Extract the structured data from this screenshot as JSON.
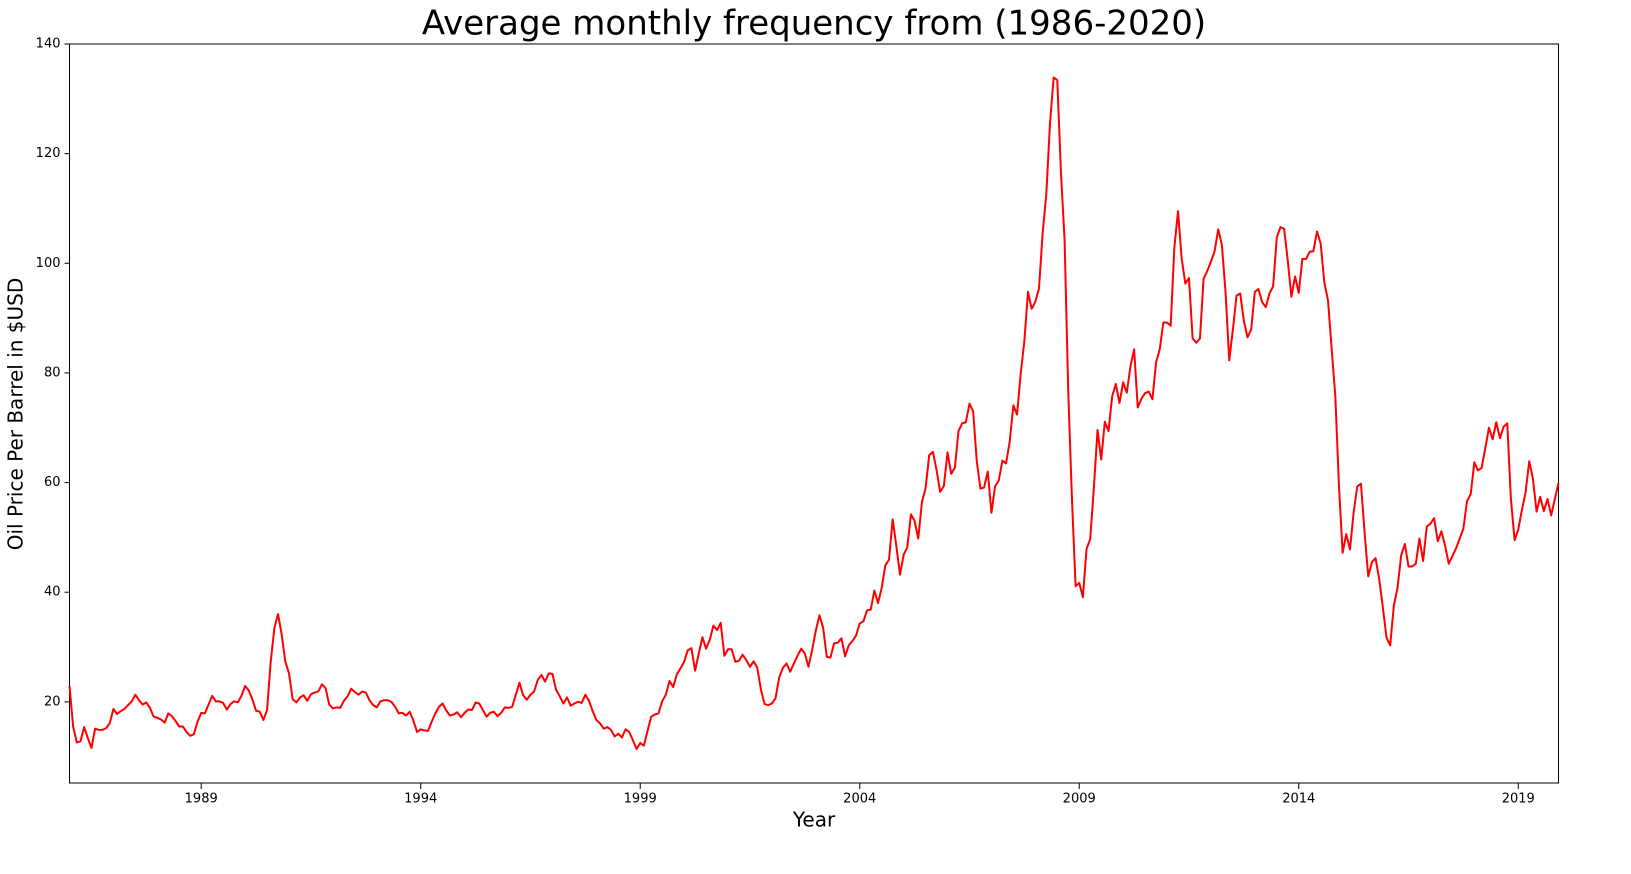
{
  "chart_data": {
    "type": "line",
    "title": "Average monthly frequency from (1986-2020)",
    "x_label": "Year",
    "y_label": "Oil Price Per Barrel in $USD",
    "color": "#ff0000",
    "xlim": [
      1986,
      2019.917
    ],
    "xticks": [
      1989,
      1994,
      1999,
      2004,
      2009,
      2014,
      2019
    ],
    "ylim": [
      5.2,
      140
    ],
    "yticks": [
      20,
      40,
      60,
      80,
      100,
      120,
      140
    ],
    "x": [
      1986,
      1986.083,
      1986.167,
      1986.25,
      1986.333,
      1986.417,
      1986.5,
      1986.583,
      1986.667,
      1986.75,
      1986.833,
      1986.917,
      1987,
      1987.083,
      1987.167,
      1987.25,
      1987.333,
      1987.417,
      1987.5,
      1987.583,
      1987.667,
      1987.75,
      1987.833,
      1987.917,
      1988,
      1988.083,
      1988.167,
      1988.25,
      1988.333,
      1988.417,
      1988.5,
      1988.583,
      1988.667,
      1988.75,
      1988.833,
      1988.917,
      1989,
      1989.083,
      1989.167,
      1989.25,
      1989.333,
      1989.417,
      1989.5,
      1989.583,
      1989.667,
      1989.75,
      1989.833,
      1989.917,
      1990,
      1990.083,
      1990.167,
      1990.25,
      1990.333,
      1990.417,
      1990.5,
      1990.583,
      1990.667,
      1990.75,
      1990.833,
      1990.917,
      1991,
      1991.083,
      1991.167,
      1991.25,
      1991.333,
      1991.417,
      1991.5,
      1991.583,
      1991.667,
      1991.75,
      1991.833,
      1991.917,
      1992,
      1992.083,
      1992.167,
      1992.25,
      1992.333,
      1992.417,
      1992.5,
      1992.583,
      1992.667,
      1992.75,
      1992.833,
      1992.917,
      1993,
      1993.083,
      1993.167,
      1993.25,
      1993.333,
      1993.417,
      1993.5,
      1993.583,
      1993.667,
      1993.75,
      1993.833,
      1993.917,
      1994,
      1994.083,
      1994.167,
      1994.25,
      1994.333,
      1994.417,
      1994.5,
      1994.583,
      1994.667,
      1994.75,
      1994.833,
      1994.917,
      1995,
      1995.083,
      1995.167,
      1995.25,
      1995.333,
      1995.417,
      1995.5,
      1995.583,
      1995.667,
      1995.75,
      1995.833,
      1995.917,
      1996,
      1996.083,
      1996.167,
      1996.25,
      1996.333,
      1996.417,
      1996.5,
      1996.583,
      1996.667,
      1996.75,
      1996.833,
      1996.917,
      1997,
      1997.083,
      1997.167,
      1997.25,
      1997.333,
      1997.417,
      1997.5,
      1997.583,
      1997.667,
      1997.75,
      1997.833,
      1997.917,
      1998,
      1998.083,
      1998.167,
      1998.25,
      1998.333,
      1998.417,
      1998.5,
      1998.583,
      1998.667,
      1998.75,
      1998.833,
      1998.917,
      1999,
      1999.083,
      1999.167,
      1999.25,
      1999.333,
      1999.417,
      1999.5,
      1999.583,
      1999.667,
      1999.75,
      1999.833,
      1999.917,
      2000,
      2000.083,
      2000.167,
      2000.25,
      2000.333,
      2000.417,
      2000.5,
      2000.583,
      2000.667,
      2000.75,
      2000.833,
      2000.917,
      2001,
      2001.083,
      2001.167,
      2001.25,
      2001.333,
      2001.417,
      2001.5,
      2001.583,
      2001.667,
      2001.75,
      2001.833,
      2001.917,
      2002,
      2002.083,
      2002.167,
      2002.25,
      2002.333,
      2002.417,
      2002.5,
      2002.583,
      2002.667,
      2002.75,
      2002.833,
      2002.917,
      2003,
      2003.083,
      2003.167,
      2003.25,
      2003.333,
      2003.417,
      2003.5,
      2003.583,
      2003.667,
      2003.75,
      2003.833,
      2003.917,
      2004,
      2004.083,
      2004.167,
      2004.25,
      2004.333,
      2004.417,
      2004.5,
      2004.583,
      2004.667,
      2004.75,
      2004.833,
      2004.917,
      2005,
      2005.083,
      2005.167,
      2005.25,
      2005.333,
      2005.417,
      2005.5,
      2005.583,
      2005.667,
      2005.75,
      2005.833,
      2005.917,
      2006,
      2006.083,
      2006.167,
      2006.25,
      2006.333,
      2006.417,
      2006.5,
      2006.583,
      2006.667,
      2006.75,
      2006.833,
      2006.917,
      2007,
      2007.083,
      2007.167,
      2007.25,
      2007.333,
      2007.417,
      2007.5,
      2007.583,
      2007.667,
      2007.75,
      2007.833,
      2007.917,
      2008,
      2008.083,
      2008.167,
      2008.25,
      2008.333,
      2008.417,
      2008.5,
      2008.583,
      2008.667,
      2008.75,
      2008.833,
      2008.917,
      2009,
      2009.083,
      2009.167,
      2009.25,
      2009.333,
      2009.417,
      2009.5,
      2009.583,
      2009.667,
      2009.75,
      2009.833,
      2009.917,
      2010,
      2010.083,
      2010.167,
      2010.25,
      2010.333,
      2010.417,
      2010.5,
      2010.583,
      2010.667,
      2010.75,
      2010.833,
      2010.917,
      2011,
      2011.083,
      2011.167,
      2011.25,
      2011.333,
      2011.417,
      2011.5,
      2011.583,
      2011.667,
      2011.75,
      2011.833,
      2011.917,
      2012,
      2012.083,
      2012.167,
      2012.25,
      2012.333,
      2012.417,
      2012.5,
      2012.583,
      2012.667,
      2012.75,
      2012.833,
      2012.917,
      2013,
      2013.083,
      2013.167,
      2013.25,
      2013.333,
      2013.417,
      2013.5,
      2013.583,
      2013.667,
      2013.75,
      2013.833,
      2013.917,
      2014,
      2014.083,
      2014.167,
      2014.25,
      2014.333,
      2014.417,
      2014.5,
      2014.583,
      2014.667,
      2014.75,
      2014.833,
      2014.917,
      2015,
      2015.083,
      2015.167,
      2015.25,
      2015.333,
      2015.417,
      2015.5,
      2015.583,
      2015.667,
      2015.75,
      2015.833,
      2015.917,
      2016,
      2016.083,
      2016.167,
      2016.25,
      2016.333,
      2016.417,
      2016.5,
      2016.583,
      2016.667,
      2016.75,
      2016.833,
      2016.917,
      2017,
      2017.083,
      2017.167,
      2017.25,
      2017.333,
      2017.417,
      2017.5,
      2017.583,
      2017.667,
      2017.75,
      2017.833,
      2017.917,
      2018,
      2018.083,
      2018.167,
      2018.25,
      2018.333,
      2018.417,
      2018.5,
      2018.583,
      2018.667,
      2018.75,
      2018.833,
      2018.917,
      2019,
      2019.083,
      2019.167,
      2019.25,
      2019.333,
      2019.417,
      2019.5,
      2019.583,
      2019.667,
      2019.75,
      2019.833,
      2019.917
    ],
    "values": [
      22.9,
      15.5,
      12.6,
      12.8,
      15.4,
      13.4,
      11.6,
      15.1,
      14.9,
      14.9,
      15.2,
      16.1,
      18.7,
      17.8,
      18.3,
      18.7,
      19.4,
      20.1,
      21.3,
      20.3,
      19.5,
      19.9,
      18.9,
      17.3,
      17.1,
      16.8,
      16.2,
      17.9,
      17.4,
      16.5,
      15.5,
      15.5,
      14.5,
      13.8,
      14.1,
      16.4,
      18.0,
      17.9,
      19.5,
      21.1,
      20.1,
      20.1,
      19.8,
      18.6,
      19.6,
      20.1,
      19.9,
      21.1,
      22.9,
      22.1,
      20.4,
      18.4,
      18.2,
      16.7,
      18.5,
      27.3,
      33.5,
      36.0,
      32.3,
      27.3,
      25.2,
      20.5,
      19.9,
      20.8,
      21.2,
      20.2,
      21.4,
      21.7,
      21.9,
      23.2,
      22.5,
      19.5,
      18.8,
      19.0,
      18.9,
      20.2,
      21.0,
      22.4,
      21.8,
      21.3,
      21.9,
      21.7,
      20.3,
      19.4,
      19.0,
      20.1,
      20.3,
      20.3,
      20.0,
      19.1,
      17.9,
      18.0,
      17.5,
      18.2,
      16.6,
      14.5,
      15.0,
      14.8,
      14.7,
      16.4,
      17.9,
      19.1,
      19.7,
      18.4,
      17.5,
      17.7,
      18.1,
      17.2,
      18.0,
      18.6,
      18.5,
      19.9,
      19.7,
      18.5,
      17.3,
      18.0,
      18.2,
      17.4,
      18.0,
      19.0,
      18.9,
      19.1,
      21.3,
      23.5,
      21.2,
      20.4,
      21.3,
      21.9,
      24.0,
      24.9,
      23.7,
      25.2,
      25.1,
      22.2,
      21.0,
      19.7,
      20.8,
      19.3,
      19.7,
      20.0,
      19.8,
      21.3,
      20.2,
      18.3,
      16.7,
      16.1,
      15.1,
      15.4,
      14.9,
      13.7,
      14.2,
      13.5,
      15.0,
      14.5,
      13.0,
      11.4,
      12.5,
      12.0,
      14.7,
      17.3,
      17.7,
      17.9,
      20.1,
      21.3,
      23.8,
      22.7,
      25.0,
      26.1,
      27.3,
      29.4,
      29.8,
      25.7,
      28.8,
      31.8,
      29.7,
      31.3,
      33.9,
      33.1,
      34.4,
      28.4,
      29.6,
      29.6,
      27.3,
      27.5,
      28.6,
      27.6,
      26.4,
      27.4,
      26.2,
      22.2,
      19.6,
      19.4,
      19.7,
      20.7,
      24.5,
      26.2,
      27.0,
      25.5,
      27.0,
      28.4,
      29.7,
      28.8,
      26.4,
      29.5,
      33.0,
      35.8,
      33.5,
      28.2,
      28.1,
      30.7,
      30.8,
      31.6,
      28.3,
      30.3,
      31.1,
      32.1,
      34.3,
      34.7,
      36.7,
      36.8,
      40.3,
      38.0,
      40.8,
      44.9,
      45.9,
      53.3,
      48.5,
      43.2,
      46.8,
      48.2,
      54.2,
      53.0,
      49.8,
      56.4,
      59.0,
      65.0,
      65.6,
      62.3,
      58.3,
      59.4,
      65.5,
      61.6,
      62.7,
      69.4,
      70.8,
      71.0,
      74.4,
      73.0,
      63.8,
      58.9,
      59.1,
      62.0,
      54.5,
      59.3,
      60.4,
      64.0,
      63.5,
      67.5,
      74.1,
      72.4,
      79.9,
      85.8,
      94.8,
      91.7,
      93.0,
      95.4,
      105.5,
      112.6,
      125.4,
      133.9,
      133.4,
      116.7,
      104.1,
      76.6,
      57.3,
      41.1,
      41.7,
      39.1,
      47.9,
      49.7,
      59.0,
      69.6,
      64.2,
      71.1,
      69.4,
      75.7,
      78.0,
      74.5,
      78.3,
      76.4,
      81.2,
      84.3,
      73.7,
      75.3,
      76.3,
      76.6,
      75.2,
      81.9,
      84.3,
      89.2,
      89.2,
      88.6,
      102.9,
      109.5,
      100.9,
      96.3,
      97.3,
      86.3,
      85.5,
      86.3,
      97.2,
      98.6,
      100.3,
      102.2,
      106.2,
      103.3,
      94.7,
      82.3,
      87.9,
      94.1,
      94.5,
      89.5,
      86.5,
      87.9,
      94.8,
      95.3,
      92.9,
      92.0,
      94.5,
      95.8,
      104.7,
      106.6,
      106.3,
      100.5,
      93.9,
      97.6,
      94.6,
      100.8,
      100.8,
      102.1,
      102.2,
      105.8,
      103.6,
      96.5,
      93.2,
      84.4,
      75.8,
      59.3,
      47.2,
      50.6,
      47.8,
      54.5,
      59.3,
      59.8,
      50.9,
      42.9,
      45.5,
      46.2,
      42.4,
      37.2,
      31.7,
      30.3,
      37.6,
      40.8,
      46.7,
      48.8,
      44.7,
      44.7,
      45.2,
      49.8,
      45.7,
      52.0,
      52.5,
      53.5,
      49.3,
      51.1,
      48.5,
      45.2,
      46.6,
      48.0,
      49.8,
      51.6,
      56.6,
      57.9,
      63.7,
      62.2,
      62.7,
      66.3,
      70.0,
      67.9,
      71.0,
      68.1,
      70.2,
      70.8,
      57.0,
      49.5,
      51.4,
      55.0,
      58.2,
      63.9,
      60.8,
      54.7,
      57.4,
      54.8,
      57.0,
      54.0,
      57.0,
      59.9
    ]
  }
}
